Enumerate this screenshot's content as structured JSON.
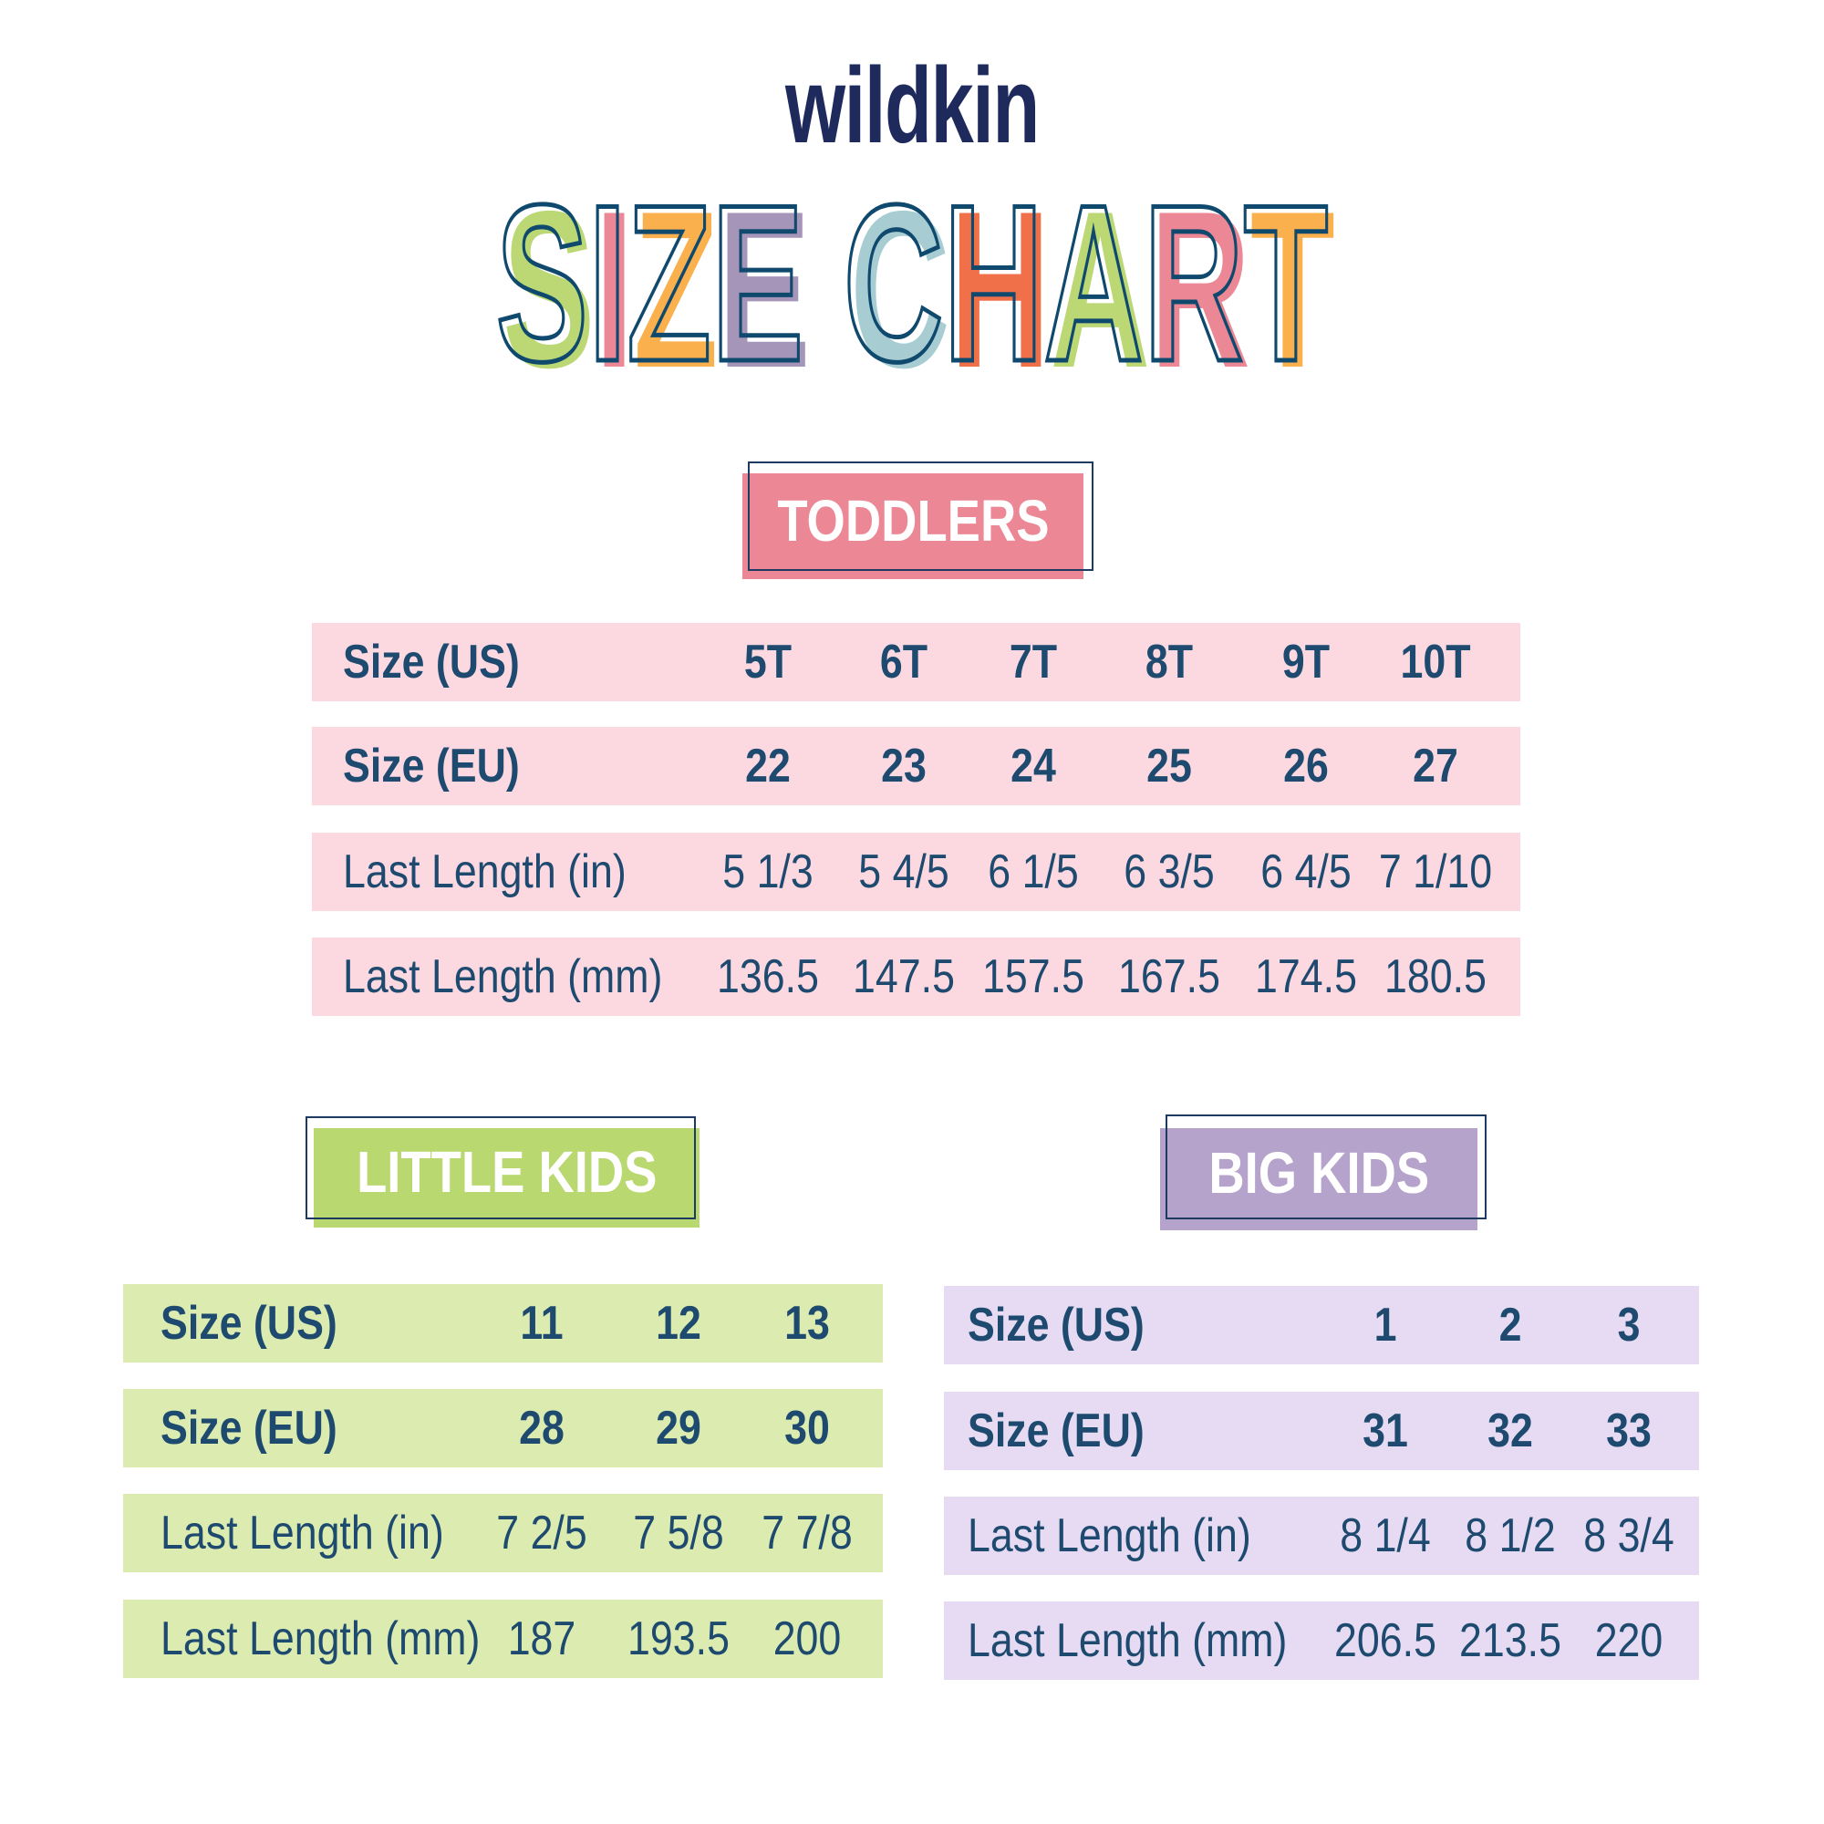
{
  "brand": "wildkin",
  "title": {
    "letters": [
      {
        "ch": "S",
        "color": "#bcd874"
      },
      {
        "ch": "I",
        "color": "#ec8796"
      },
      {
        "ch": "Z",
        "color": "#fbb04e"
      },
      {
        "ch": "E",
        "color": "#a595b8"
      },
      {
        "ch": " ",
        "color": ""
      },
      {
        "ch": "C",
        "color": "#a7cdd3"
      },
      {
        "ch": "H",
        "color": "#f0704a"
      },
      {
        "ch": "A",
        "color": "#bcd874"
      },
      {
        "ch": "R",
        "color": "#ec8796"
      },
      {
        "ch": "T",
        "color": "#fbb04e"
      }
    ]
  },
  "colors": {
    "text": "#1d4a6e",
    "toddlers_row": "#fcd9e1",
    "toddlers_badge": "#ec8796",
    "little_row": "#dcebb0",
    "little_badge": "#b9d870",
    "big_row": "#e6dbf2",
    "big_badge": "#b5a3cb"
  },
  "toddlers": {
    "heading": "TODDLERS",
    "rows": [
      {
        "label": "Size (US)",
        "values": [
          "5T",
          "6T",
          "7T",
          "8T",
          "9T",
          "10T"
        ]
      },
      {
        "label": "Size (EU)",
        "values": [
          "22",
          "23",
          "24",
          "25",
          "26",
          "27"
        ]
      },
      {
        "label": "Last Length (in)",
        "values": [
          "5 1/3",
          "5 4/5",
          "6 1/5",
          "6 3/5",
          "6 4/5",
          "7 1/10"
        ]
      },
      {
        "label": "Last Length (mm)",
        "values": [
          "136.5",
          "147.5",
          "157.5",
          "167.5",
          "174.5",
          "180.5"
        ]
      }
    ]
  },
  "little_kids": {
    "heading": "LITTLE KIDS",
    "rows": [
      {
        "label": "Size (US)",
        "values": [
          "11",
          "12",
          "13"
        ]
      },
      {
        "label": "Size (EU)",
        "values": [
          "28",
          "29",
          "30"
        ]
      },
      {
        "label": "Last Length (in)",
        "values": [
          "7 2/5",
          "7 5/8",
          "7 7/8"
        ]
      },
      {
        "label": "Last Length (mm)",
        "values": [
          "187",
          "193.5",
          "200"
        ]
      }
    ]
  },
  "big_kids": {
    "heading": "BIG KIDS",
    "rows": [
      {
        "label": "Size (US)",
        "values": [
          "1",
          "2",
          "3"
        ]
      },
      {
        "label": "Size (EU)",
        "values": [
          "31",
          "32",
          "33"
        ]
      },
      {
        "label": "Last Length (in)",
        "values": [
          "8 1/4",
          "8 1/2",
          "8 3/4"
        ]
      },
      {
        "label": "Last Length (mm)",
        "values": [
          "206.5",
          "213.5",
          "220"
        ]
      }
    ]
  }
}
